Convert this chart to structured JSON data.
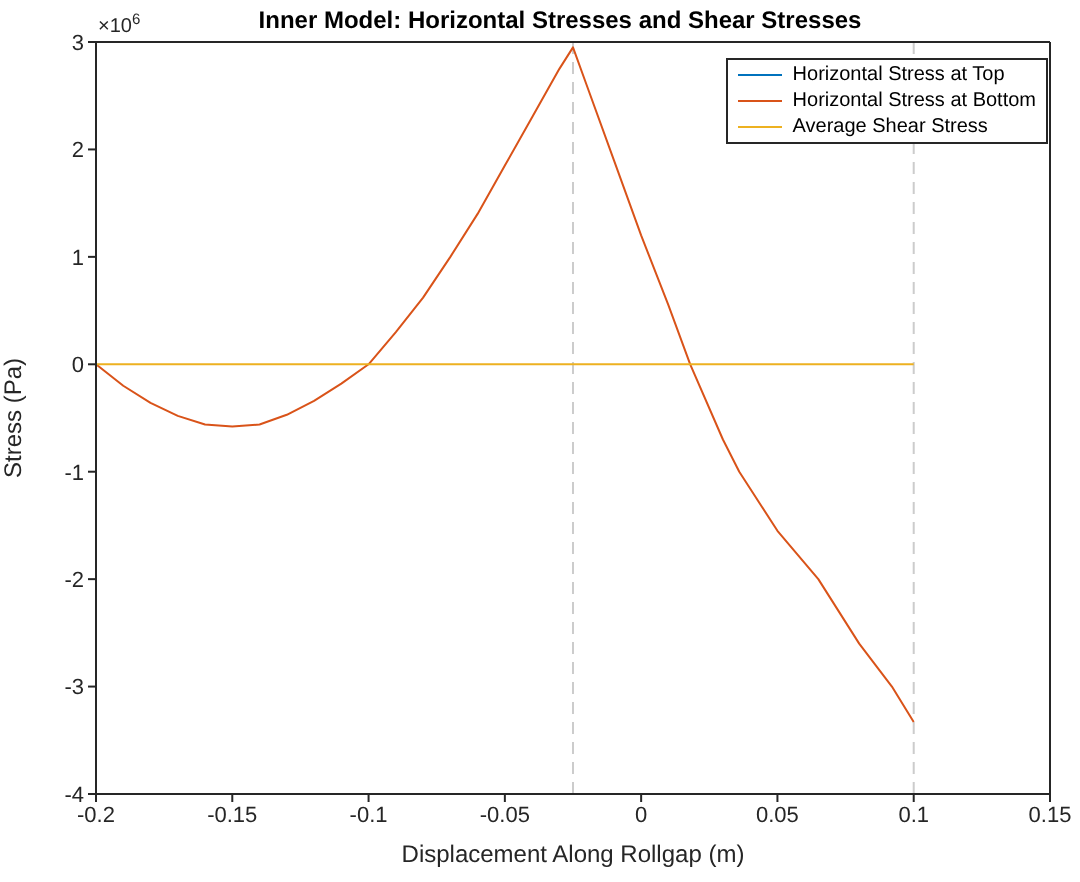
{
  "chart_data": {
    "type": "line",
    "title": "Inner Model: Horizontal Stresses and Shear Stresses",
    "xlabel": "Displacement Along Rollgap (m)",
    "ylabel": "Stress (Pa)",
    "annotations": [
      "×10$^{6}$"
    ],
    "xlim": [
      -0.2,
      0.15
    ],
    "xticks": [
      -0.2,
      -0.15,
      -0.1,
      -0.05,
      0,
      0.05,
      0.1,
      0.15
    ],
    "ylim": [
      -4,
      3
    ],
    "yticks": [
      -4,
      -3,
      -2,
      -1,
      0,
      1,
      2,
      3
    ],
    "legend": "top right",
    "marker": "none",
    "line_style": "solid",
    "ref_lines": [
      {
        "axis": "x",
        "value": -0.025,
        "color": "#cccccc",
        "line_style": "dashed"
      },
      {
        "axis": "x",
        "value": 0.1,
        "color": "#cccccc",
        "line_style": "dashed"
      }
    ],
    "series": [
      {
        "name": "Horizontal Stress at Top",
        "color": "#0072bd"
      },
      {
        "name": "Horizontal Stress at Bottom",
        "color": "#d95319",
        "x": [
          -0.2,
          -0.19,
          -0.18,
          -0.17,
          -0.16,
          -0.15,
          -0.14,
          -0.13,
          -0.12,
          -0.11,
          -0.1,
          -0.09,
          -0.08,
          -0.07,
          -0.06,
          -0.05,
          -0.04,
          -0.03,
          -0.025,
          -0.02,
          -0.01,
          0,
          0.01,
          0.018,
          0.03,
          0.036,
          0.05,
          0.065,
          0.08,
          0.092,
          0.1
        ],
        "values": [
          0,
          -0.2,
          -0.36,
          -0.48,
          -0.56,
          -0.58,
          -0.56,
          -0.47,
          -0.34,
          -0.18,
          0,
          0.3,
          0.62,
          1.0,
          1.4,
          1.85,
          2.3,
          2.75,
          2.95,
          2.6,
          1.9,
          1.2,
          0.55,
          0,
          -0.7,
          -1.0,
          -1.55,
          -2.0,
          -2.6,
          -3.0,
          -3.33
        ]
      },
      {
        "name": "Average Shear Stress",
        "color": "#edb120",
        "x": [
          -0.2,
          0.1
        ],
        "values": [
          0,
          0
        ]
      }
    ]
  }
}
